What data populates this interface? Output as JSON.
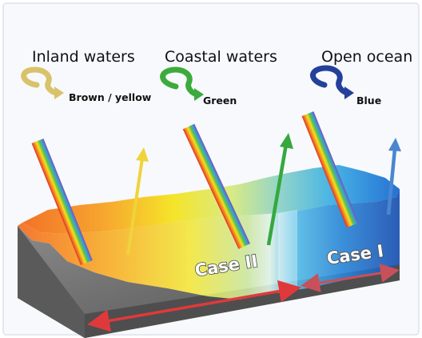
{
  "regions": [
    {
      "title": "Inland waters",
      "color_label": "Brown / yellow",
      "swirl_color": "#d9c26a"
    },
    {
      "title": "Coastal waters",
      "color_label": "Green",
      "swirl_color": "#3cab3c"
    },
    {
      "title": "Open ocean",
      "color_label": "Blue",
      "swirl_color": "#24409a"
    }
  ],
  "cases": {
    "case2_label": "Case II",
    "case1_label": "Case I"
  },
  "colors": {
    "inland_orange": "#f26b1d",
    "inland_yellow": "#f5e31e",
    "coastal_green": "#b9dc7a",
    "ocean_cyan": "#44b8e4",
    "ocean_blue": "#1a5fc0",
    "seabed_gray": "#6f6f6f",
    "case_arrow_red": "#e0393b",
    "case_arrow_pink": "#c8505a"
  }
}
